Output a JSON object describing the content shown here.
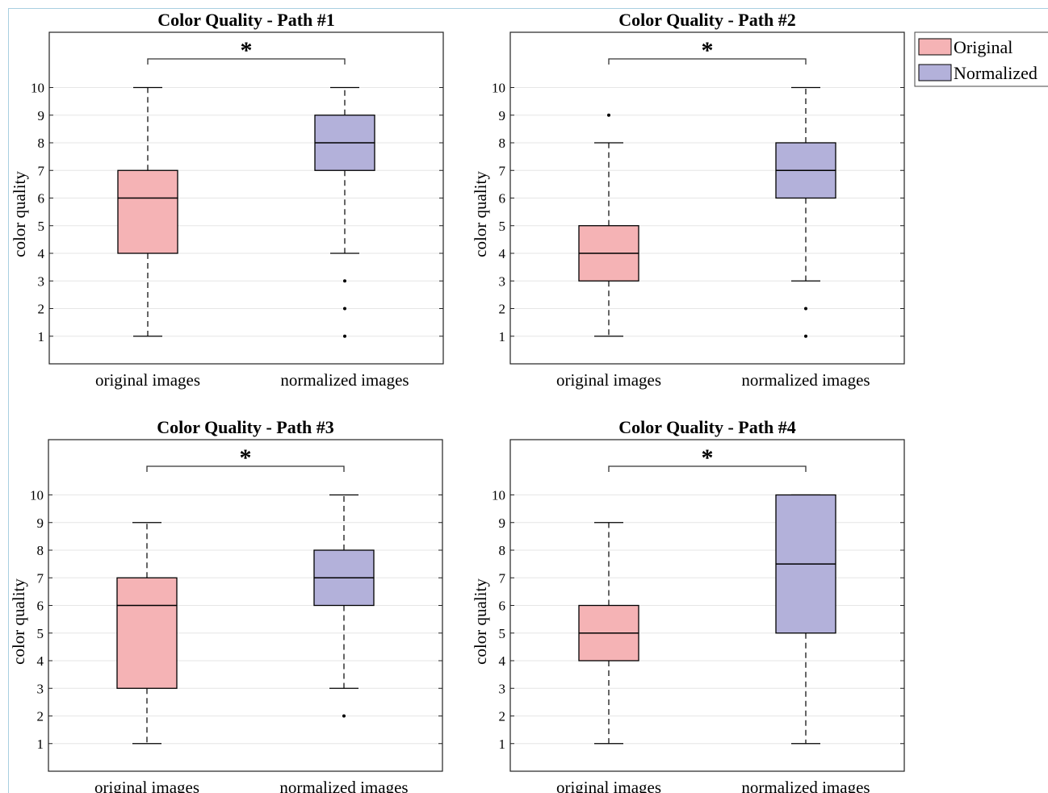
{
  "colors": {
    "original": "#f5b3b5",
    "normalized": "#b3b1da",
    "stroke": "#000000",
    "grid": "#e6e6e6"
  },
  "legend": {
    "placement": "top-right",
    "entries": [
      {
        "label": "Original",
        "color": "#f5b3b5"
      },
      {
        "label": "Normalized",
        "color": "#b3b1da"
      }
    ]
  },
  "chart_data": [
    {
      "type": "box",
      "title": "Color Quality - Path #1",
      "ylabel": "color quality",
      "categories": [
        "original images",
        "normalized images"
      ],
      "ylim": [
        0,
        12
      ],
      "yticks": [
        1,
        2,
        3,
        4,
        5,
        6,
        7,
        8,
        9,
        10
      ],
      "grid": true,
      "significance": "*",
      "boxes": [
        {
          "category": "original images",
          "min": 1,
          "q1": 4,
          "median": 6,
          "q3": 7,
          "max": 10,
          "outliers": []
        },
        {
          "category": "normalized images",
          "min": 4,
          "q1": 7,
          "median": 8,
          "q3": 9,
          "max": 10,
          "outliers": [
            3,
            2,
            1
          ]
        }
      ]
    },
    {
      "type": "box",
      "title": "Color Quality - Path #2",
      "ylabel": "color quality",
      "categories": [
        "original images",
        "normalized images"
      ],
      "ylim": [
        0,
        12
      ],
      "yticks": [
        1,
        2,
        3,
        4,
        5,
        6,
        7,
        8,
        9,
        10
      ],
      "grid": true,
      "significance": "*",
      "boxes": [
        {
          "category": "original images",
          "min": 1,
          "q1": 3,
          "median": 4,
          "q3": 5,
          "max": 8,
          "outliers": [
            9
          ]
        },
        {
          "category": "normalized images",
          "min": 3,
          "q1": 6,
          "median": 7,
          "q3": 8,
          "max": 10,
          "outliers": [
            2,
            1
          ]
        }
      ]
    },
    {
      "type": "box",
      "title": "Color Quality - Path #3",
      "ylabel": "color quality",
      "categories": [
        "original images",
        "normalized images"
      ],
      "ylim": [
        0,
        12
      ],
      "yticks": [
        1,
        2,
        3,
        4,
        5,
        6,
        7,
        8,
        9,
        10
      ],
      "grid": true,
      "significance": "*",
      "boxes": [
        {
          "category": "original images",
          "min": 1,
          "q1": 3,
          "median": 6,
          "q3": 7,
          "max": 9,
          "outliers": []
        },
        {
          "category": "normalized images",
          "min": 3,
          "q1": 6,
          "median": 7,
          "q3": 8,
          "max": 10,
          "outliers": [
            2
          ]
        }
      ]
    },
    {
      "type": "box",
      "title": "Color Quality - Path #4",
      "ylabel": "color quality",
      "categories": [
        "original images",
        "normalized images"
      ],
      "ylim": [
        0,
        12
      ],
      "yticks": [
        1,
        2,
        3,
        4,
        5,
        6,
        7,
        8,
        9,
        10
      ],
      "grid": true,
      "significance": "*",
      "boxes": [
        {
          "category": "original images",
          "min": 1,
          "q1": 4,
          "median": 5,
          "q3": 6,
          "max": 9,
          "outliers": []
        },
        {
          "category": "normalized images",
          "min": 1,
          "q1": 5,
          "median": 7.5,
          "q3": 10,
          "max": 10,
          "outliers": []
        }
      ]
    }
  ]
}
